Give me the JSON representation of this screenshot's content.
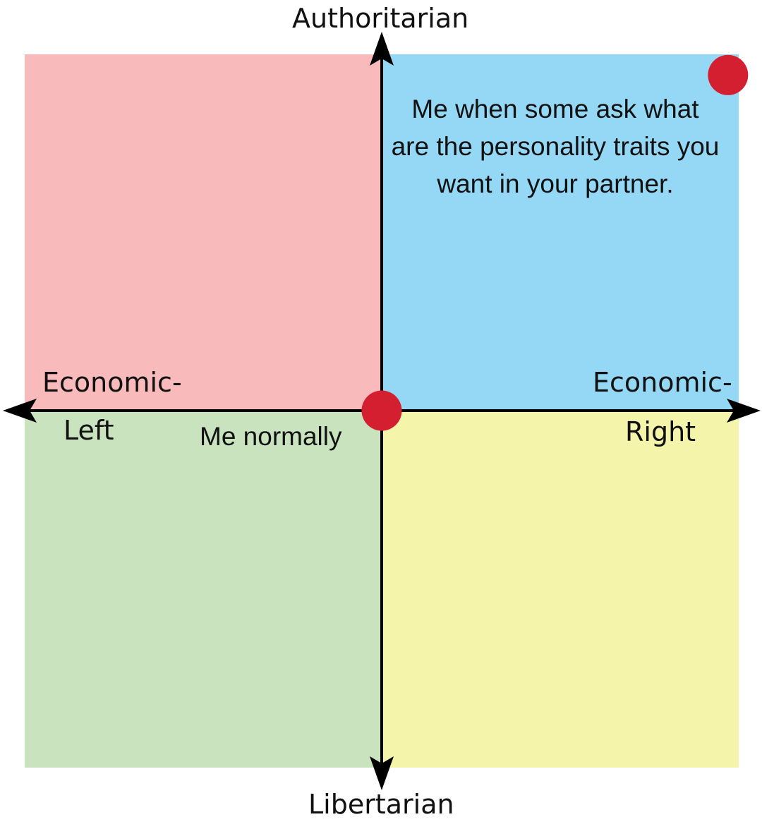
{
  "compass": {
    "axis_labels": {
      "top": "Authoritarian",
      "bottom": "Libertarian",
      "left_line1": "Economic-",
      "left_line2": "Left",
      "right_line1": "Economic-",
      "right_line2": "Right"
    },
    "quadrant_colors": {
      "auth_left": "#f8baba",
      "auth_right": "#94d8f5",
      "lib_left": "#c9e3be",
      "lib_right": "#f4f4aa"
    },
    "range": [
      -10,
      10
    ],
    "dot_color": "#d31f2f",
    "points": [
      {
        "label": "Me normally",
        "economic": 0,
        "social": 0
      },
      {
        "label": "Me when some ask what are the personality traits you want in your partner.",
        "economic": 9.7,
        "social": 9.4
      }
    ]
  }
}
